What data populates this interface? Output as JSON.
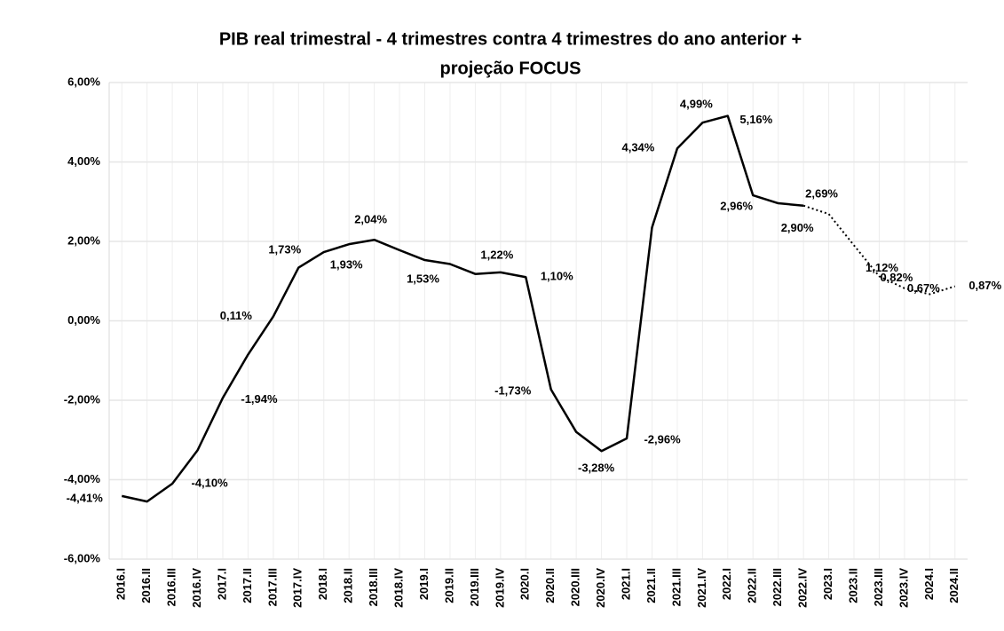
{
  "chart_data": {
    "type": "line",
    "title": [
      "PIB real trimestral - 4 trimestres contra 4 trimestres do ano anterior +",
      "projeção FOCUS"
    ],
    "categories": [
      "2016.I",
      "2016.II",
      "2016.III",
      "2016.IV",
      "2017.I",
      "2017.II",
      "2017.III",
      "2017.IV",
      "2018.I",
      "2018.II",
      "2018.III",
      "2018.IV",
      "2019.I",
      "2019.II",
      "2019.III",
      "2019.IV",
      "2020.I",
      "2020.II",
      "2020.III",
      "2020.IV",
      "2021.I",
      "2021.II",
      "2021.III",
      "2021.IV",
      "2022.I",
      "2022.II",
      "2022.III",
      "2022.IV",
      "2023.I",
      "2023.II",
      "2023.III",
      "2023.IV",
      "2024.I",
      "2024.II"
    ],
    "series": [
      {
        "color": "#000000",
        "line_style": "solid",
        "values": [
          -4.41,
          -4.55,
          -4.1,
          -3.26,
          -1.94,
          -0.85,
          0.11,
          1.34,
          1.73,
          1.93,
          2.04,
          1.78,
          1.53,
          1.43,
          1.18,
          1.22,
          1.1,
          -1.73,
          -2.8,
          -3.28,
          -2.96,
          2.35,
          4.34,
          4.99,
          5.16,
          3.16,
          2.96,
          2.9,
          null,
          null,
          null,
          null,
          null,
          null
        ],
        "value_labels": [
          "-4,41%",
          null,
          "-4,10%",
          null,
          "-1,94%",
          null,
          "0,11%",
          null,
          "1,73%",
          "1,93%",
          "2,04%",
          null,
          "1,53%",
          null,
          null,
          "1,22%",
          "1,10%",
          "-1,73%",
          null,
          "-3,28%",
          "-2,96%",
          null,
          "4,34%",
          "4,99%",
          "5,16%",
          null,
          "2,96%",
          "2,90%",
          null,
          null,
          null,
          null,
          null,
          null
        ]
      },
      {
        "color": "#000000",
        "line_style": "dotted",
        "values": [
          null,
          null,
          null,
          null,
          null,
          null,
          null,
          null,
          null,
          null,
          null,
          null,
          null,
          null,
          null,
          null,
          null,
          null,
          null,
          null,
          null,
          null,
          null,
          null,
          null,
          null,
          null,
          2.9,
          2.69,
          1.9,
          1.12,
          0.82,
          0.67,
          0.87
        ],
        "value_labels": [
          null,
          null,
          null,
          null,
          null,
          null,
          null,
          null,
          null,
          null,
          null,
          null,
          null,
          null,
          null,
          null,
          null,
          null,
          null,
          null,
          null,
          null,
          null,
          null,
          null,
          null,
          null,
          null,
          "2,69%",
          null,
          "1,12%",
          "0,82%",
          "0,67%",
          "0,87%"
        ]
      }
    ],
    "ylim": [
      -6,
      6
    ],
    "yticks": [
      {
        "value": -6,
        "label": "-6,00%"
      },
      {
        "value": -4,
        "label": "-4,00%"
      },
      {
        "value": -2,
        "label": "-2,00%"
      },
      {
        "value": 0,
        "label": "0,00%"
      },
      {
        "value": 2,
        "label": "2,00%"
      },
      {
        "value": 4,
        "label": "4,00%"
      },
      {
        "value": 6,
        "label": "6,00%"
      }
    ],
    "grid": true
  }
}
